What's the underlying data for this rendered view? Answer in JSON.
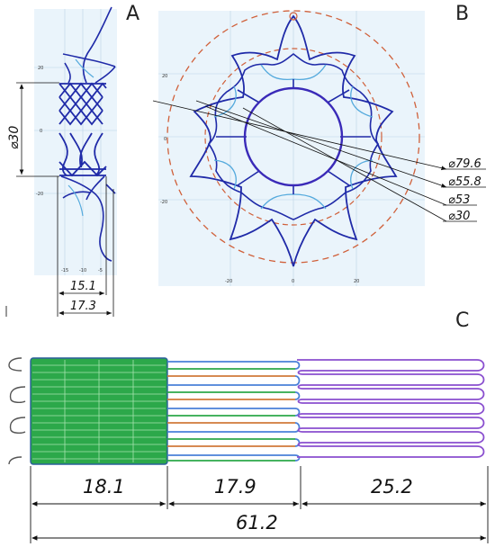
{
  "panels": {
    "a": "A",
    "b": "B",
    "c": "C"
  },
  "panel_a": {
    "diameter_label": "⌀30",
    "dim_inner": "15.1",
    "dim_outer": "17.3",
    "y_ticks": [
      "20",
      "0",
      "-20"
    ],
    "x_ticks": [
      "-15",
      "-10",
      "-5"
    ]
  },
  "panel_b": {
    "diameters": [
      "⌀79.6",
      "⌀55.8",
      "⌀53",
      "⌀30"
    ],
    "y_ticks": [
      "20",
      "0",
      "-20"
    ],
    "x_ticks": [
      "-20",
      "0",
      "20"
    ]
  },
  "panel_c": {
    "segments": [
      "18.1",
      "17.9",
      "25.2"
    ],
    "total": "61.2"
  },
  "colors": {
    "wire_dark": "#1f2aa8",
    "wire_light": "#55aadd",
    "dash_circle": "#d0603a",
    "green": "#2ca84a",
    "purple": "#8a4fcf",
    "orange": "#d07a3a",
    "blue_strut": "#4a80d8",
    "bg_plot": "#e9f3fb"
  }
}
